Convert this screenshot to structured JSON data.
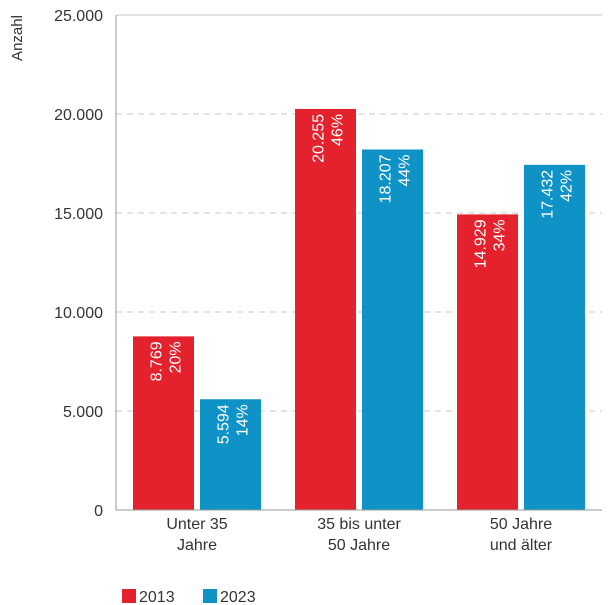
{
  "chart_data": {
    "type": "bar",
    "categories": [
      [
        "Unter 35",
        "Jahre"
      ],
      [
        "35 bis unter",
        "50 Jahre"
      ],
      [
        "50 Jahre",
        "und älter"
      ]
    ],
    "series": [
      {
        "name": "2013",
        "color": "#e3222d",
        "values": [
          8769,
          20255,
          14929
        ],
        "value_labels": [
          "8.769",
          "20.255",
          "14.929"
        ],
        "percent_labels": [
          "20%",
          "46%",
          "34%"
        ]
      },
      {
        "name": "2023",
        "color": "#0f93c7",
        "values": [
          5594,
          18207,
          17432
        ],
        "value_labels": [
          "5.594",
          "18.207",
          "17.432"
        ],
        "percent_labels": [
          "14%",
          "44%",
          "42%"
        ]
      }
    ],
    "ylabel": "Anzahl",
    "ylim": [
      0,
      25000
    ],
    "yticks": [
      0,
      5000,
      10000,
      15000,
      20000,
      25000
    ],
    "ytick_labels": [
      "0",
      "5.000",
      "10.000",
      "15.000",
      "20.000",
      "25.000"
    ],
    "grid": "dashed horizontal",
    "legend": "bottom-left"
  }
}
